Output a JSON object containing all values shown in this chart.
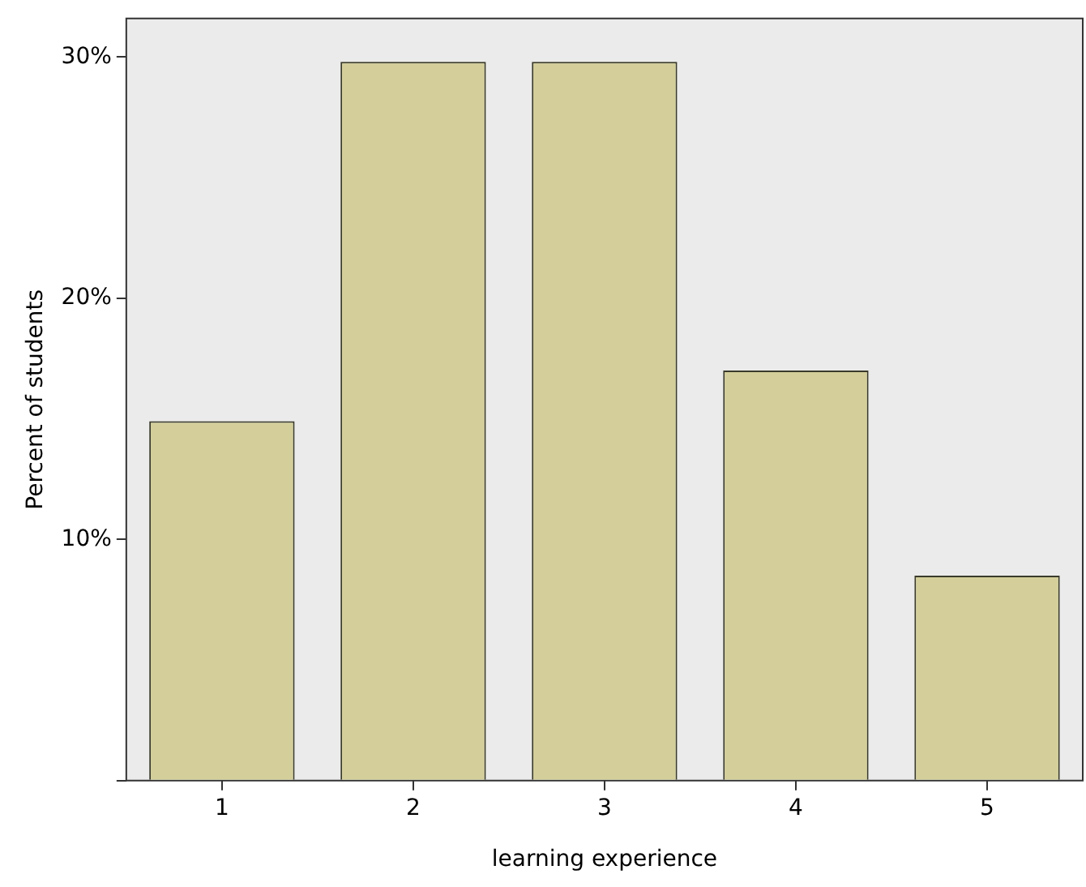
{
  "chart_data": {
    "type": "bar",
    "xlabel": "learning experience",
    "ylabel": "Percent of students",
    "categories": [
      "1",
      "2",
      "3",
      "4",
      "5"
    ],
    "values": [
      14.9,
      29.8,
      29.8,
      17.0,
      8.5
    ],
    "color": "#d4cf9a",
    "ylim": [
      0,
      31.6
    ],
    "yticks": [
      {
        "value": 0,
        "label": null
      },
      {
        "value": 10,
        "label": "10%"
      },
      {
        "value": 20,
        "label": "20%"
      },
      {
        "value": 30,
        "label": "30%"
      }
    ],
    "grid": false,
    "legend": false
  }
}
